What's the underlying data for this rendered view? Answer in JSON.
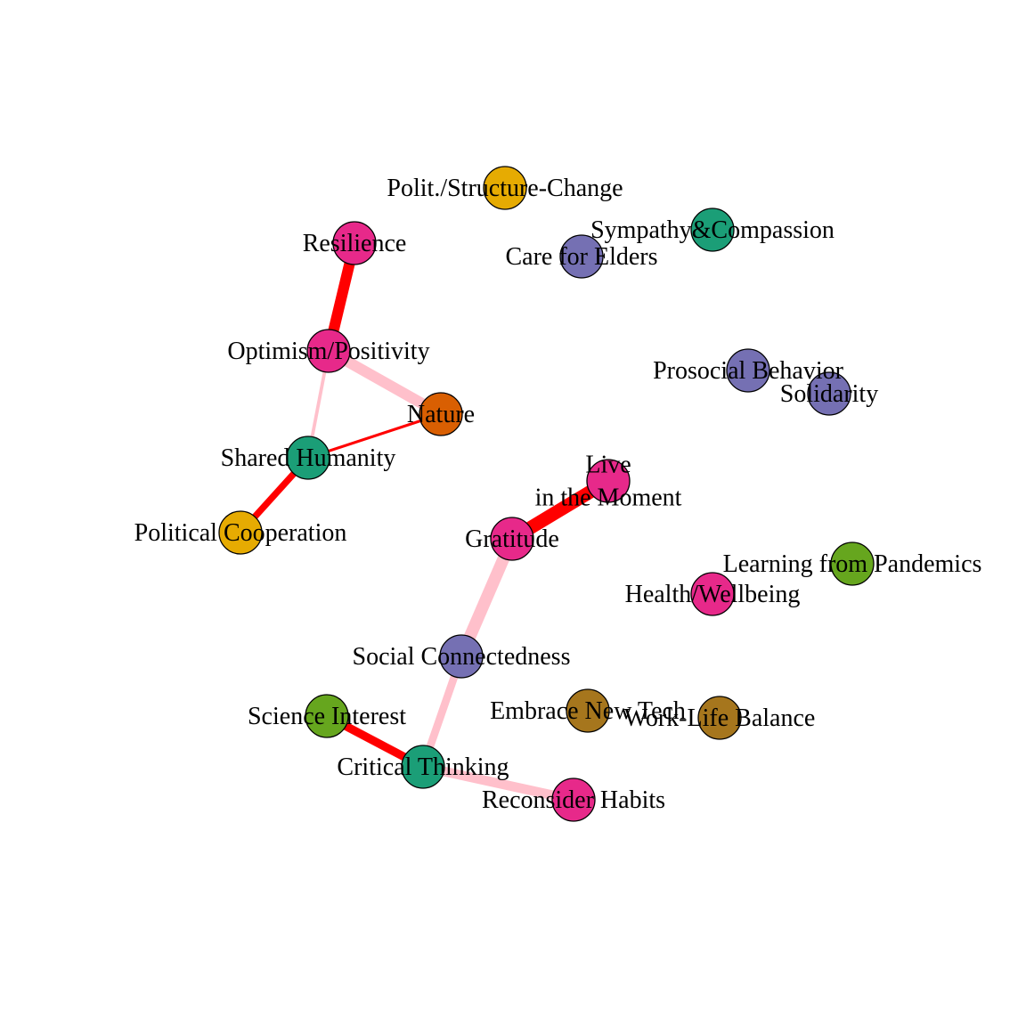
{
  "colors": {
    "magenta": "#E7298A",
    "purple": "#7570B3",
    "teal": "#1B9E77",
    "gold": "#E6AB02",
    "orange": "#D95F02",
    "green": "#66A61E",
    "brown": "#A6761D",
    "edge_red": "#FF0000",
    "edge_pink": "#FFC0CB"
  },
  "nodes": [
    {
      "id": "polit_structure_change",
      "label": "Polit./Structure-Change",
      "color": "#E6AB02"
    },
    {
      "id": "sympathy_compassion",
      "label": "Sympathy&Compassion",
      "color": "#1B9E77"
    },
    {
      "id": "care_for_elders",
      "label": "Care for Elders",
      "color": "#7570B3"
    },
    {
      "id": "resilience",
      "label": "Resilience",
      "color": "#E7298A"
    },
    {
      "id": "optimism_positivity",
      "label": "Optimism/Positivity",
      "color": "#E7298A"
    },
    {
      "id": "prosocial_behavior",
      "label": "Prosocial Behavior",
      "color": "#7570B3"
    },
    {
      "id": "solidarity",
      "label": "Solidarity",
      "color": "#7570B3"
    },
    {
      "id": "nature",
      "label": "Nature",
      "color": "#D95F02"
    },
    {
      "id": "shared_humanity",
      "label": "Shared Humanity",
      "color": "#1B9E77"
    },
    {
      "id": "live_in_the_moment",
      "label": "Live\nin the Moment",
      "color": "#E7298A"
    },
    {
      "id": "political_cooperation",
      "label": "Political Cooperation",
      "color": "#E6AB02"
    },
    {
      "id": "gratitude",
      "label": "Gratitude",
      "color": "#E7298A"
    },
    {
      "id": "learning_from_pandemics",
      "label": "Learning from Pandemics",
      "color": "#66A61E"
    },
    {
      "id": "health_wellbeing",
      "label": "Health/Wellbeing",
      "color": "#E7298A"
    },
    {
      "id": "social_connectedness",
      "label": "Social Connectedness",
      "color": "#7570B3"
    },
    {
      "id": "embrace_new_tech",
      "label": "Embrace New Tech",
      "color": "#A6761D"
    },
    {
      "id": "work_life_balance",
      "label": "Work-Life Balance",
      "color": "#A6761D"
    },
    {
      "id": "science_interest",
      "label": "Science Interest",
      "color": "#66A61E"
    },
    {
      "id": "critical_thinking",
      "label": "Critical Thinking",
      "color": "#1B9E77"
    },
    {
      "id": "reconsider_habits",
      "label": "Reconsider Habits",
      "color": "#E7298A"
    }
  ],
  "edges": [
    {
      "source": "resilience",
      "target": "optimism_positivity",
      "sign": "positive",
      "weight": 0.8
    },
    {
      "source": "optimism_positivity",
      "target": "nature",
      "sign": "negative",
      "weight": 0.8
    },
    {
      "source": "optimism_positivity",
      "target": "shared_humanity",
      "sign": "negative",
      "weight": 0.2
    },
    {
      "source": "nature",
      "target": "shared_humanity",
      "sign": "positive",
      "weight": 0.15
    },
    {
      "source": "shared_humanity",
      "target": "political_cooperation",
      "sign": "positive",
      "weight": 0.45
    },
    {
      "source": "live_in_the_moment",
      "target": "gratitude",
      "sign": "positive",
      "weight": 1.0
    },
    {
      "source": "gratitude",
      "target": "social_connectedness",
      "sign": "negative",
      "weight": 0.9
    },
    {
      "source": "social_connectedness",
      "target": "critical_thinking",
      "sign": "negative",
      "weight": 0.55
    },
    {
      "source": "science_interest",
      "target": "critical_thinking",
      "sign": "positive",
      "weight": 0.6
    },
    {
      "source": "critical_thinking",
      "target": "reconsider_habits",
      "sign": "negative",
      "weight": 0.7
    }
  ]
}
